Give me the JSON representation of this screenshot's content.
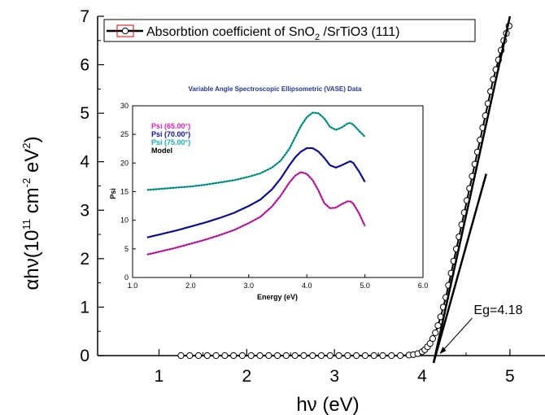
{
  "chart_data": [
    {
      "type": "scatter",
      "legend": {
        "label": "Absorbtion coefficient of SnO",
        "subscript": "2",
        "label_tail": " /SrTiO3 (111)",
        "placement": "top-left"
      },
      "ylabel": {
        "prefix": "αhν(10",
        "sup1": "11",
        "middle1": " cm",
        "sup2": "-2",
        "middle2": " eV",
        "sup3": "2",
        "suffix": ")"
      },
      "xlabel": "hν (eV)",
      "xlim": [
        0.3,
        5.4
      ],
      "ylim": [
        0,
        7
      ],
      "xticks": [
        "1",
        "2",
        "3",
        "4",
        "5"
      ],
      "yticks": [
        "0",
        "1",
        "2",
        "3",
        "4",
        "5",
        "6",
        "7"
      ],
      "series": [
        {
          "name": "Absorbtion coefficient of SnO2 /SrTiO3 (111)",
          "marker": "open-circle",
          "x": [
            1.25,
            1.35,
            1.45,
            1.55,
            1.65,
            1.75,
            1.85,
            1.95,
            2.05,
            2.15,
            2.25,
            2.35,
            2.45,
            2.55,
            2.65,
            2.75,
            2.85,
            2.95,
            3.05,
            3.15,
            3.25,
            3.35,
            3.45,
            3.55,
            3.65,
            3.75,
            3.85,
            3.9,
            3.95,
            4.0,
            4.03,
            4.06,
            4.09,
            4.12,
            4.15,
            4.18,
            4.21,
            4.24,
            4.27,
            4.3,
            4.33,
            4.36,
            4.39,
            4.42,
            4.45,
            4.48,
            4.51,
            4.54,
            4.57,
            4.6,
            4.63,
            4.66,
            4.69,
            4.72,
            4.75,
            4.78,
            4.81,
            4.84,
            4.87,
            4.9,
            4.93,
            4.96,
            4.99
          ],
          "y": [
            0,
            0,
            0,
            0,
            0,
            0,
            0,
            0,
            0,
            0,
            0,
            0,
            0,
            0,
            0,
            0,
            0,
            0,
            0,
            0,
            0,
            0,
            0,
            0,
            0,
            0,
            0.01,
            0.02,
            0.04,
            0.08,
            0.12,
            0.18,
            0.25,
            0.35,
            0.47,
            0.62,
            0.8,
            1.0,
            1.2,
            1.45,
            1.7,
            1.95,
            2.2,
            2.45,
            2.7,
            2.95,
            3.2,
            3.45,
            3.7,
            3.95,
            4.2,
            4.45,
            4.7,
            4.95,
            5.2,
            5.45,
            5.7,
            5.9,
            6.1,
            6.3,
            6.5,
            6.65,
            6.8
          ]
        }
      ],
      "fit_line": {
        "x": [
          4.13,
          5.0
        ],
        "y": [
          -0.15,
          7.0
        ]
      },
      "tangent_line": {
        "x": [
          4.13,
          4.73
        ],
        "y": [
          -0.15,
          3.75
        ]
      },
      "annotation": {
        "text": "Eg=4.18",
        "x": 4.18,
        "y": 0.0
      }
    },
    {
      "type": "line",
      "title": "Variable Angle Spectroscopic Ellipsometric (VASE) Data",
      "xlabel": "Energy (eV)",
      "ylabel": "Psi",
      "xlim": [
        1.0,
        6.0
      ],
      "ylim": [
        0,
        30
      ],
      "xticks": [
        "1.0",
        "2.0",
        "3.0",
        "4.0",
        "5.0",
        "6.0"
      ],
      "yticks": [
        "0",
        "5",
        "10",
        "15",
        "20",
        "25",
        "30"
      ],
      "legend_placement": "top-left",
      "x": [
        1.25,
        1.5,
        1.75,
        2.0,
        2.25,
        2.5,
        2.75,
        3.0,
        3.2,
        3.4,
        3.55,
        3.7,
        3.8,
        3.9,
        4.0,
        4.1,
        4.2,
        4.3,
        4.4,
        4.5,
        4.6,
        4.7,
        4.75,
        4.8,
        4.9,
        5.0
      ],
      "series": [
        {
          "name": "Psi (65.00°)",
          "color": "#e020c0",
          "values": [
            4.0,
            4.6,
            5.2,
            5.9,
            6.6,
            7.4,
            8.3,
            9.5,
            10.6,
            12.4,
            14.3,
            16.6,
            17.8,
            18.4,
            18.1,
            17.0,
            15.2,
            13.0,
            12.1,
            12.2,
            12.8,
            13.3,
            13.3,
            12.9,
            11.2,
            9.0
          ]
        },
        {
          "name": "Psi (70.00°)",
          "color": "#1010b0",
          "values": [
            7.0,
            7.6,
            8.2,
            8.9,
            9.6,
            10.4,
            11.3,
            12.5,
            13.6,
            15.4,
            17.3,
            19.6,
            21.0,
            22.0,
            22.6,
            22.6,
            22.0,
            20.9,
            19.6,
            19.2,
            19.6,
            20.1,
            20.3,
            20.0,
            18.5,
            16.7
          ]
        },
        {
          "name": "Psi (75.00°)",
          "color": "#10b0b0",
          "values": [
            15.3,
            15.5,
            15.7,
            15.9,
            16.2,
            16.6,
            17.0,
            17.6,
            18.2,
            19.2,
            20.4,
            22.5,
            24.5,
            26.5,
            28.0,
            28.8,
            28.7,
            27.8,
            26.3,
            25.8,
            26.2,
            26.9,
            27.0,
            26.7,
            25.6,
            24.6
          ]
        },
        {
          "name": "Model",
          "color": "#000000",
          "values": [
            15.3,
            15.5,
            15.7,
            15.9,
            16.2,
            16.6,
            17.0,
            17.6,
            18.2,
            19.2,
            20.4,
            22.5,
            24.5,
            26.5,
            28.0,
            28.8,
            28.7,
            27.8,
            26.3,
            25.8,
            26.2,
            26.9,
            27.0,
            26.7,
            25.6,
            24.6
          ]
        }
      ]
    }
  ]
}
